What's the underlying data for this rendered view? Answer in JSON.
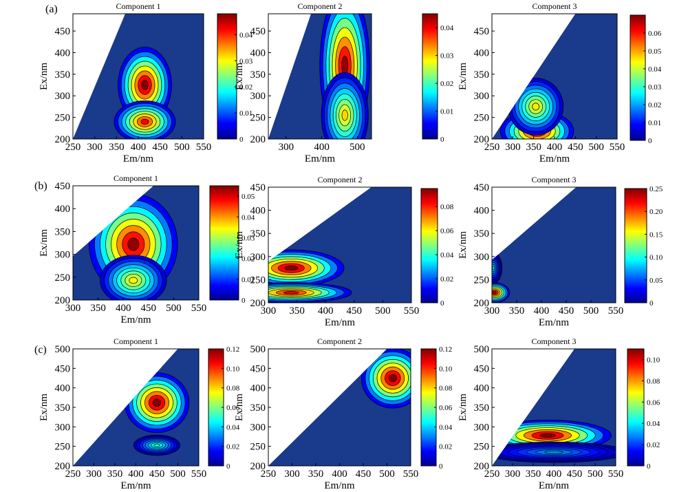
{
  "rows": [
    {
      "label": "(a)"
    },
    {
      "label": "(b)"
    },
    {
      "label": "(c)"
    }
  ],
  "colormap": [
    "#00008f",
    "#0000ff",
    "#0080ff",
    "#00ffff",
    "#80ff80",
    "#ffff00",
    "#ff8000",
    "#ff0000",
    "#800000"
  ],
  "background_color": "#1a3a8c",
  "chart_data": [
    {
      "type": "heatmap",
      "title": "Component 1",
      "xlabel": "Em/nm",
      "ylabel": "Ex/nm",
      "xlim": [
        250,
        550
      ],
      "ylim": [
        200,
        490
      ],
      "xticks": [
        250,
        300,
        350,
        400,
        450,
        500,
        550
      ],
      "yticks": [
        200,
        250,
        300,
        350,
        400,
        450
      ],
      "clim": [
        0,
        0.048
      ],
      "cticks": [
        0,
        0.01,
        0.02,
        0.03,
        0.04
      ],
      "cticklabels": [
        "0",
        "0.01",
        "0.02",
        "0.03",
        "0.04"
      ],
      "scatter_line": {
        "em_at_ex_ymin": 250,
        "em_at_ex_ymax": 370
      },
      "peaks": [
        {
          "em": 415,
          "ex": 325,
          "value": 0.048,
          "sx": 28,
          "sy": 40
        },
        {
          "em": 415,
          "ex": 240,
          "value": 0.042,
          "sx": 32,
          "sy": 22
        }
      ]
    },
    {
      "type": "heatmap",
      "title": "Component 2",
      "xlabel": "Em/nm",
      "ylabel": "Ex/nm",
      "xlim": [
        250,
        540
      ],
      "ylim": [
        200,
        490
      ],
      "xticks": [
        300,
        400,
        500
      ],
      "yticks": [
        200,
        250,
        300,
        350,
        400,
        450
      ],
      "clim": [
        0,
        0.045
      ],
      "cticks": [
        0,
        0.01,
        0.02,
        0.03,
        0.04
      ],
      "cticklabels": [
        "0",
        "0.01",
        "0.02",
        "0.03",
        "0.04"
      ],
      "scatter_line": {
        "em_at_ex_ymin": 250,
        "em_at_ex_ymax": 370
      },
      "peaks": [
        {
          "em": 465,
          "ex": 370,
          "value": 0.044,
          "sx": 32,
          "sy": 80
        },
        {
          "em": 465,
          "ex": 255,
          "value": 0.03,
          "sx": 30,
          "sy": 45
        }
      ]
    },
    {
      "type": "heatmap",
      "title": "Component 3",
      "xlabel": "Em/nm",
      "ylabel": "Ex/nm",
      "xlim": [
        250,
        550
      ],
      "ylim": [
        200,
        490
      ],
      "xticks": [
        250,
        300,
        350,
        400,
        450,
        500,
        550
      ],
      "yticks": [
        200,
        250,
        300,
        350,
        400,
        450
      ],
      "clim": [
        0,
        0.07
      ],
      "cticks": [
        0,
        0.01,
        0.02,
        0.03,
        0.04,
        0.05,
        0.06
      ],
      "cticklabels": [
        "0",
        "0.01",
        "0.02",
        "0.03",
        "0.04",
        "0.05",
        "0.06"
      ],
      "scatter_line": {
        "em_at_ex_ymin": 250,
        "em_at_ex_ymax": 450
      },
      "peaks": [
        {
          "em": 358,
          "ex": 218,
          "value": 0.068,
          "sx": 40,
          "sy": 22
        },
        {
          "em": 355,
          "ex": 275,
          "value": 0.045,
          "sx": 30,
          "sy": 30
        }
      ]
    },
    {
      "type": "heatmap",
      "title": "Component 1",
      "xlabel": "Em/nm",
      "ylabel": "Ex/nm",
      "xlim": [
        300,
        550
      ],
      "ylim": [
        200,
        450
      ],
      "xticks": [
        300,
        350,
        400,
        450,
        500,
        550
      ],
      "yticks": [
        200,
        250,
        300,
        350,
        400,
        450
      ],
      "clim": [
        0,
        0.055
      ],
      "cticks": [
        0,
        0.01,
        0.02,
        0.03,
        0.04,
        0.05
      ],
      "cticklabels": [
        "0",
        "0.01",
        "0.02",
        "0.03",
        "0.04",
        "0.05"
      ],
      "scatter_line": {
        "em_at_ex_ymin": 200,
        "em_at_ex_ymax": 460
      },
      "peaks": [
        {
          "em": 420,
          "ex": 322,
          "value": 0.054,
          "sx": 40,
          "sy": 50
        },
        {
          "em": 420,
          "ex": 243,
          "value": 0.035,
          "sx": 30,
          "sy": 25
        }
      ]
    },
    {
      "type": "heatmap",
      "title": "Component 2",
      "xlabel": "Em/nm",
      "ylabel": "Ex/nm",
      "xlim": [
        300,
        550
      ],
      "ylim": [
        200,
        450
      ],
      "xticks": [
        300,
        350,
        400,
        450,
        500,
        550
      ],
      "yticks": [
        200,
        250,
        300,
        350,
        400,
        450
      ],
      "clim": [
        0,
        0.095
      ],
      "cticks": [
        0,
        0.02,
        0.04,
        0.06,
        0.08
      ],
      "cticklabels": [
        "0",
        "0.02",
        "0.04",
        "0.06",
        "0.08"
      ],
      "scatter_line": {
        "em_at_ex_ymin": 200,
        "em_at_ex_ymax": 480
      },
      "peaks": [
        {
          "em": 340,
          "ex": 275,
          "value": 0.095,
          "sx": 42,
          "sy": 18
        },
        {
          "em": 340,
          "ex": 222,
          "value": 0.085,
          "sx": 48,
          "sy": 10
        }
      ]
    },
    {
      "type": "heatmap",
      "title": "Component 3",
      "xlabel": "Em/nm",
      "ylabel": "Ex/nm",
      "xlim": [
        300,
        550
      ],
      "ylim": [
        200,
        450
      ],
      "xticks": [
        300,
        350,
        400,
        450,
        500,
        550
      ],
      "yticks": [
        200,
        250,
        300,
        350,
        400,
        450
      ],
      "clim": [
        0,
        0.25
      ],
      "cticks": [
        0,
        0.05,
        0.1,
        0.15,
        0.2,
        0.25
      ],
      "cticklabels": [
        "0",
        "0.05",
        "0.10",
        "0.15",
        "0.20",
        "0.25"
      ],
      "scatter_line": {
        "em_at_ex_ymin": 200,
        "em_at_ex_ymax": 470
      },
      "peaks": [
        {
          "em": 305,
          "ex": 222,
          "value": 0.24,
          "sx": 14,
          "sy": 10
        },
        {
          "em": 303,
          "ex": 275,
          "value": 0.08,
          "sx": 8,
          "sy": 15
        }
      ]
    },
    {
      "type": "heatmap",
      "title": "Component 1",
      "xlabel": "Em/nm",
      "ylabel": "Ex/nm",
      "xlim": [
        250,
        550
      ],
      "ylim": [
        200,
        500
      ],
      "xticks": [
        250,
        300,
        350,
        400,
        450,
        500,
        550
      ],
      "yticks": [
        200,
        250,
        300,
        350,
        400,
        450,
        500
      ],
      "clim": [
        0,
        0.12
      ],
      "cticks": [
        0,
        0.02,
        0.04,
        0.06,
        0.08,
        0.1,
        0.12
      ],
      "cticklabels": [
        "0",
        "0.02",
        "0.04",
        "0.06",
        "0.08",
        "0.10",
        "0.12"
      ],
      "scatter_line": {
        "em_at_ex_ymin": 250,
        "em_at_ex_ymax": 500
      },
      "peaks": [
        {
          "em": 450,
          "ex": 362,
          "value": 0.12,
          "sx": 35,
          "sy": 35
        },
        {
          "em": 450,
          "ex": 253,
          "value": 0.05,
          "sx": 25,
          "sy": 12
        }
      ]
    },
    {
      "type": "heatmap",
      "title": "Component 2",
      "xlabel": "Em/nm",
      "ylabel": "Ex/nm",
      "xlim": [
        250,
        550
      ],
      "ylim": [
        200,
        500
      ],
      "xticks": [
        250,
        300,
        350,
        400,
        450,
        500,
        550
      ],
      "xticklabels": [
        "250",
        "300",
        "350",
        "400",
        "450",
        "500",
        "550"
      ],
      "yticks": [
        200,
        250,
        300,
        350,
        400,
        450,
        500
      ],
      "clim": [
        0,
        0.12
      ],
      "cticks": [
        0,
        0.02,
        0.04,
        0.06,
        0.08,
        0.1,
        0.12
      ],
      "cticklabels": [
        "0",
        "0.02",
        "0.04",
        "0.06",
        "0.08",
        "0.10",
        "0.12"
      ],
      "scatter_line": {
        "em_at_ex_ymin": 250,
        "em_at_ex_ymax": 500
      },
      "peaks": [
        {
          "em": 512,
          "ex": 425,
          "value": 0.12,
          "sx": 30,
          "sy": 35
        }
      ]
    },
    {
      "type": "heatmap",
      "title": "Component 3",
      "xlabel": "Em/nm",
      "ylabel": "Ex/nm",
      "xlim": [
        250,
        550
      ],
      "ylim": [
        200,
        500
      ],
      "xticks": [
        250,
        300,
        350,
        400,
        450,
        500,
        550
      ],
      "yticks": [
        200,
        250,
        300,
        350,
        400,
        450,
        500
      ],
      "clim": [
        0,
        0.11
      ],
      "cticks": [
        0,
        0.02,
        0.04,
        0.06,
        0.08,
        0.1
      ],
      "cticklabels": [
        "0",
        "0.02",
        "0.04",
        "0.06",
        "0.08",
        "0.10"
      ],
      "scatter_line": {
        "em_at_ex_ymin": 250,
        "em_at_ex_ymax": 450
      },
      "peaks": [
        {
          "em": 385,
          "ex": 278,
          "value": 0.11,
          "sx": 70,
          "sy": 18
        },
        {
          "em": 400,
          "ex": 235,
          "value": 0.03,
          "sx": 80,
          "sy": 12
        }
      ]
    }
  ]
}
